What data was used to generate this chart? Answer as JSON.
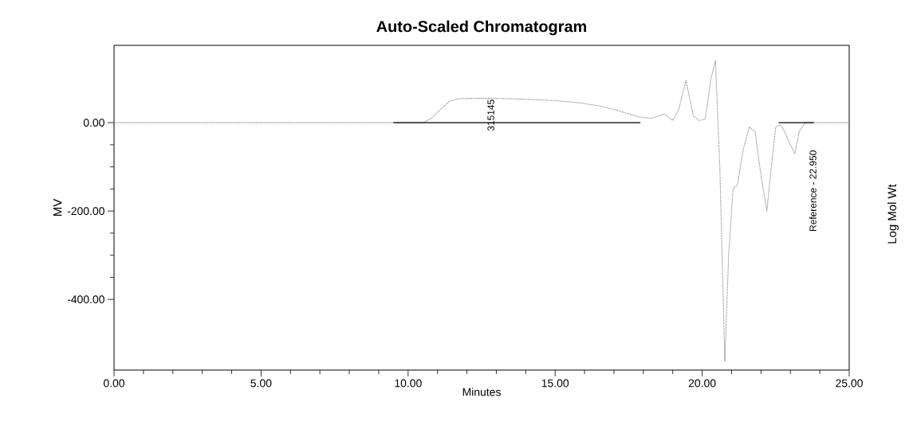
{
  "chart_data": {
    "type": "line",
    "title": "Auto-Scaled Chromatogram",
    "xlabel": "Minutes",
    "ylabel": "MV",
    "y2label": "Log Mol Wt",
    "xlim": [
      0,
      25
    ],
    "ylim": [
      -560,
      175
    ],
    "xticks": [
      {
        "value": 0,
        "label": "0.00"
      },
      {
        "value": 5,
        "label": "5.00"
      },
      {
        "value": 10,
        "label": "10.00"
      },
      {
        "value": 15,
        "label": "15.00"
      },
      {
        "value": 20,
        "label": "20.00"
      },
      {
        "value": 25,
        "label": "25.00"
      }
    ],
    "yticks": [
      {
        "value": -400,
        "label": "-400.00"
      },
      {
        "value": -200,
        "label": "-200.00"
      },
      {
        "value": 0,
        "label": "0.00"
      }
    ],
    "line_style": "dotted",
    "series": [
      {
        "color": "#808080",
        "x": [
          0,
          10.5,
          10.8,
          11.1,
          11.4,
          11.7,
          12.0,
          13.0,
          14.0,
          15.0,
          15.8,
          16.5,
          17.0,
          17.5,
          17.9,
          18.3,
          18.7,
          19.0,
          19.2,
          19.45,
          19.7,
          19.9,
          20.1,
          20.3,
          20.45,
          20.6,
          20.77,
          20.9,
          21.05,
          21.2,
          21.4,
          21.6,
          21.8,
          22.0,
          22.2,
          22.35,
          22.5,
          22.65,
          22.8,
          23.0,
          23.15,
          23.3,
          23.5,
          25
        ],
        "values": [
          0,
          0,
          10,
          30,
          48,
          54,
          55,
          55,
          53,
          50,
          45,
          38,
          30,
          20,
          12,
          10,
          20,
          5,
          30,
          95,
          15,
          5,
          8,
          100,
          140,
          -100,
          -540,
          -300,
          -150,
          -140,
          -60,
          -10,
          -20,
          -120,
          -200,
          -100,
          -10,
          -5,
          -20,
          -50,
          -70,
          -20,
          0,
          0
        ]
      },
      {
        "color": "#000000",
        "line_style": "solid",
        "x": [
          9.5,
          17.9
        ],
        "values": [
          0,
          0
        ]
      },
      {
        "color": "#000000",
        "line_style": "solid",
        "x": [
          22.6,
          23.8
        ],
        "values": [
          0,
          0
        ]
      }
    ],
    "annotations": [
      {
        "text": "315145",
        "x": 12.0,
        "y": 55
      },
      {
        "text": "Reference - 22.950",
        "x": 22.95,
        "y": -60
      }
    ]
  }
}
